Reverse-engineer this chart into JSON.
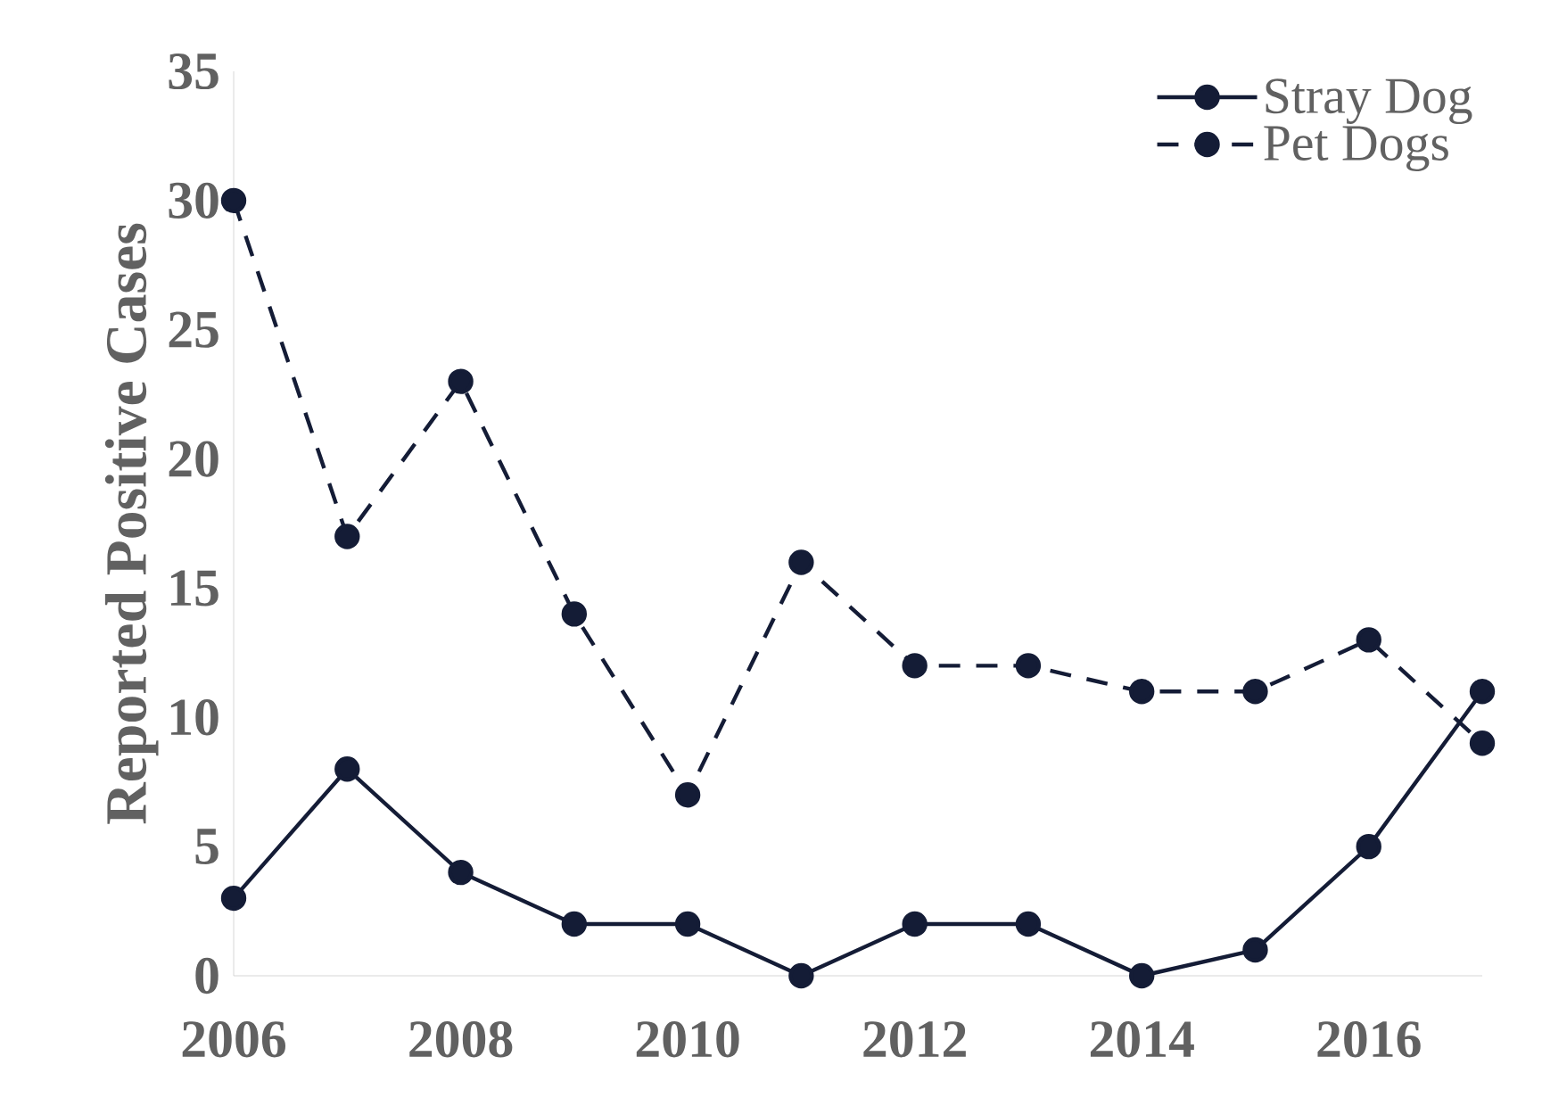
{
  "chart_data": {
    "type": "line",
    "ylabel": "Reported Positive Cases",
    "x": [
      2006,
      2007,
      2008,
      2009,
      2010,
      2011,
      2012,
      2013,
      2014,
      2015,
      2016,
      2017
    ],
    "series": [
      {
        "name": "Stray Dog",
        "color": "#141c36",
        "line_style": "solid",
        "values": [
          3,
          8,
          4,
          2,
          2,
          0,
          2,
          2,
          0,
          1,
          5,
          11
        ]
      },
      {
        "name": "Pet Dogs",
        "color": "#141c36",
        "line_style": "dashed",
        "values": [
          30,
          17,
          23,
          14,
          7,
          16,
          12,
          12,
          11,
          11,
          13,
          9
        ]
      }
    ],
    "xlim": [
      2006,
      2017
    ],
    "xticks": [
      2006,
      2008,
      2010,
      2012,
      2014,
      2016
    ],
    "ylim": [
      0,
      35
    ],
    "yticks": [
      0,
      5,
      10,
      15,
      20,
      25,
      30,
      35
    ],
    "marker": "circle",
    "grid": false,
    "legend": "top right"
  }
}
